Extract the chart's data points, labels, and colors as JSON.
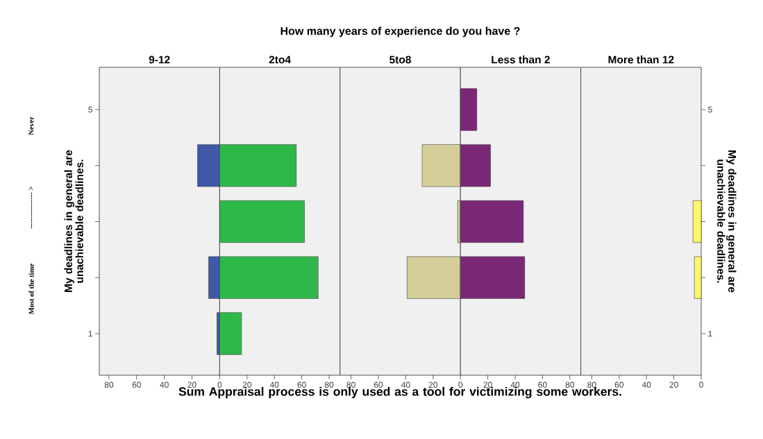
{
  "chart_data": [
    {
      "type": "bar",
      "orientation": "horizontal",
      "title": "9-12",
      "categories": [
        "5",
        null,
        null,
        null,
        "1"
      ],
      "values": [
        null,
        16,
        null,
        8,
        2
      ],
      "color": "#3f59a8",
      "xlim": [
        87,
        0
      ],
      "xticks": [
        80,
        60,
        40,
        20
      ],
      "ylabel": "My deadlines in general are unachievable deadlines.",
      "annotations": [
        "Never",
        "--------------- >",
        "Most of the time"
      ]
    },
    {
      "type": "bar",
      "orientation": "horizontal",
      "title": "2to4",
      "categories": [
        "5",
        null,
        null,
        null,
        "1"
      ],
      "values": [
        null,
        56,
        62,
        72,
        16
      ],
      "color": "#2fb84a",
      "xlim": [
        0,
        88
      ],
      "xticks": [
        0,
        20,
        40,
        60,
        80
      ],
      "tick_labels": "x"
    },
    {
      "type": "bar",
      "orientation": "horizontal",
      "title": "5to8",
      "categories": [
        "5",
        null,
        null,
        null,
        "1"
      ],
      "values": [
        null,
        28,
        2,
        39,
        null
      ],
      "color": "#d4cf99",
      "xlim": [
        88,
        0
      ],
      "xticks": [
        80,
        60,
        40,
        20
      ],
      "tick_labels": "x",
      "xlabel": "Sum Appraisal process is only used as a tool for victimizing some workers.",
      "annotations": [
        "How many years of experience do you have ?"
      ]
    },
    {
      "type": "bar",
      "orientation": "horizontal",
      "title": "Less than 2",
      "categories": [
        "5",
        null,
        null,
        null,
        "1"
      ],
      "values": [
        12,
        22,
        46,
        47,
        null
      ],
      "color": "#7b2777",
      "xlim": [
        0,
        88
      ],
      "xticks": [
        0,
        20,
        40,
        60,
        80
      ],
      "tick_labels": "x"
    },
    {
      "type": "bar",
      "orientation": "horizontal",
      "title": "More than 12",
      "categories": [
        "5",
        null,
        null,
        null,
        "1"
      ],
      "values": [
        null,
        null,
        6,
        5,
        null
      ],
      "color": "#fdf56d",
      "xlim": [
        88,
        0
      ],
      "xticks": [
        80,
        60,
        40,
        20,
        0
      ],
      "ylabel": "My deadlines in general are unachievable deadlines."
    }
  ]
}
